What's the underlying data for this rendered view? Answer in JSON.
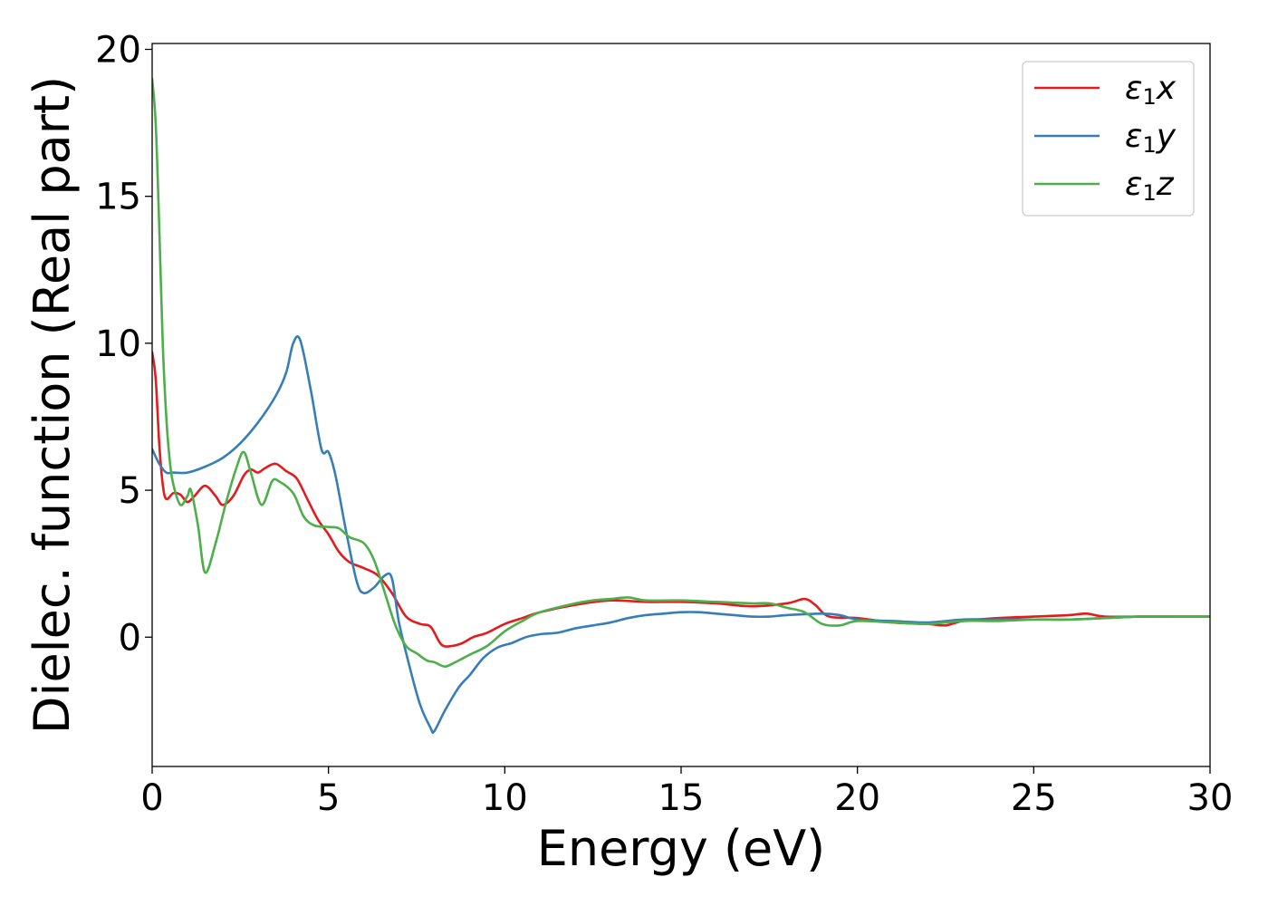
{
  "chart_data": {
    "type": "line",
    "xlabel": "Energy (eV)",
    "ylabel": "Dielec. function (Real part)",
    "xlim": [
      0,
      30
    ],
    "ylim": [
      -4.4,
      20.2
    ],
    "xticks": [
      0,
      5,
      10,
      15,
      20,
      25,
      30
    ],
    "yticks": [
      0,
      5,
      10,
      15,
      20
    ],
    "grid": false,
    "legend_position": "top-right",
    "series": [
      {
        "name": "ε1x",
        "legend_main": "ε",
        "legend_sub": "1",
        "legend_var": "x",
        "color": "#e41a1c",
        "x": [
          0,
          0.1,
          0.2,
          0.3,
          0.4,
          0.6,
          0.8,
          1.0,
          1.2,
          1.5,
          1.8,
          2.0,
          2.3,
          2.6,
          2.8,
          3.0,
          3.2,
          3.5,
          3.8,
          4.1,
          4.4,
          4.7,
          5.0,
          5.3,
          5.6,
          6.0,
          6.4,
          6.8,
          7.2,
          7.6,
          7.9,
          8.2,
          8.5,
          8.8,
          9.1,
          9.5,
          10.0,
          10.5,
          11.0,
          12.0,
          13.0,
          14.0,
          15.0,
          16.0,
          17.0,
          18.0,
          18.5,
          18.8,
          19.2,
          20.0,
          21.0,
          22.0,
          22.5,
          23.0,
          24.0,
          25.0,
          26.0,
          26.5,
          27.0,
          28.0,
          29.0,
          30.0
        ],
        "y": [
          9.7,
          8.8,
          6.6,
          5.2,
          4.7,
          4.9,
          4.85,
          4.6,
          4.8,
          5.15,
          4.8,
          4.5,
          4.8,
          5.5,
          5.7,
          5.6,
          5.75,
          5.9,
          5.65,
          5.4,
          4.7,
          4.0,
          3.5,
          2.9,
          2.55,
          2.35,
          2.1,
          1.5,
          0.7,
          0.45,
          0.35,
          -0.25,
          -0.3,
          -0.2,
          0.0,
          0.15,
          0.45,
          0.65,
          0.85,
          1.1,
          1.25,
          1.2,
          1.2,
          1.15,
          1.05,
          1.15,
          1.3,
          1.1,
          0.7,
          0.65,
          0.5,
          0.45,
          0.4,
          0.55,
          0.65,
          0.7,
          0.75,
          0.8,
          0.7,
          0.7,
          0.7,
          0.7
        ]
      },
      {
        "name": "ε1y",
        "legend_main": "ε",
        "legend_sub": "1",
        "legend_var": "y",
        "color": "#377eb8",
        "x": [
          0,
          0.2,
          0.4,
          0.6,
          1.0,
          1.5,
          2.0,
          2.5,
          3.0,
          3.5,
          3.8,
          4.0,
          4.2,
          4.5,
          4.8,
          5.0,
          5.2,
          5.5,
          5.8,
          6.0,
          6.3,
          6.6,
          6.8,
          7.0,
          7.3,
          7.6,
          7.9,
          8.0,
          8.3,
          8.7,
          9.0,
          9.4,
          9.8,
          10.2,
          10.6,
          11.0,
          11.5,
          12.0,
          12.5,
          13.0,
          13.5,
          14.0,
          14.5,
          15.0,
          15.5,
          16.0,
          16.5,
          17.0,
          17.5,
          18.0,
          19.0,
          19.5,
          20.0,
          21.0,
          22.0,
          23.0,
          24.0,
          25.0,
          26.0,
          27.0,
          28.0,
          29.0,
          30.0
        ],
        "y": [
          6.4,
          5.9,
          5.6,
          5.6,
          5.6,
          5.8,
          6.1,
          6.6,
          7.3,
          8.2,
          9.0,
          10.0,
          10.1,
          8.4,
          6.4,
          6.3,
          5.5,
          3.6,
          1.9,
          1.5,
          1.7,
          2.1,
          2.0,
          0.5,
          -1.0,
          -2.3,
          -3.1,
          -3.2,
          -2.5,
          -1.7,
          -1.3,
          -0.7,
          -0.35,
          -0.2,
          0.0,
          0.1,
          0.15,
          0.3,
          0.4,
          0.5,
          0.65,
          0.75,
          0.8,
          0.85,
          0.85,
          0.8,
          0.75,
          0.7,
          0.7,
          0.75,
          0.8,
          0.75,
          0.6,
          0.55,
          0.5,
          0.6,
          0.6,
          0.6,
          0.6,
          0.65,
          0.7,
          0.7,
          0.7
        ]
      },
      {
        "name": "ε1z",
        "legend_main": "ε",
        "legend_sub": "1",
        "legend_var": "z",
        "color": "#4daf4a",
        "x": [
          0,
          0.1,
          0.2,
          0.3,
          0.4,
          0.5,
          0.6,
          0.8,
          1.0,
          1.1,
          1.3,
          1.5,
          1.8,
          2.1,
          2.4,
          2.6,
          2.8,
          3.1,
          3.4,
          3.6,
          4.0,
          4.3,
          4.6,
          5.0,
          5.3,
          5.6,
          6.0,
          6.3,
          6.6,
          6.9,
          7.2,
          7.5,
          7.8,
          8.0,
          8.3,
          8.6,
          9.0,
          9.5,
          10.0,
          10.5,
          11.0,
          12.0,
          12.5,
          13.0,
          13.5,
          14.0,
          15.0,
          16.0,
          17.0,
          17.5,
          18.0,
          18.5,
          19.0,
          19.5,
          20.0,
          21.0,
          22.0,
          23.0,
          24.0,
          25.0,
          26.0,
          27.0,
          28.0,
          29.0,
          30.0
        ],
        "y": [
          19.0,
          17.5,
          14.0,
          10.0,
          7.5,
          6.0,
          5.2,
          4.5,
          4.8,
          5.0,
          3.8,
          2.2,
          3.2,
          4.6,
          5.8,
          6.3,
          5.6,
          4.5,
          5.3,
          5.3,
          4.9,
          4.1,
          3.8,
          3.75,
          3.7,
          3.4,
          3.2,
          2.6,
          1.5,
          0.4,
          -0.3,
          -0.55,
          -0.8,
          -0.85,
          -1.0,
          -0.85,
          -0.6,
          -0.3,
          0.2,
          0.55,
          0.85,
          1.15,
          1.25,
          1.3,
          1.35,
          1.25,
          1.25,
          1.2,
          1.15,
          1.15,
          1.0,
          0.85,
          0.45,
          0.4,
          0.55,
          0.5,
          0.45,
          0.55,
          0.55,
          0.6,
          0.6,
          0.65,
          0.7,
          0.7,
          0.7
        ]
      }
    ]
  }
}
